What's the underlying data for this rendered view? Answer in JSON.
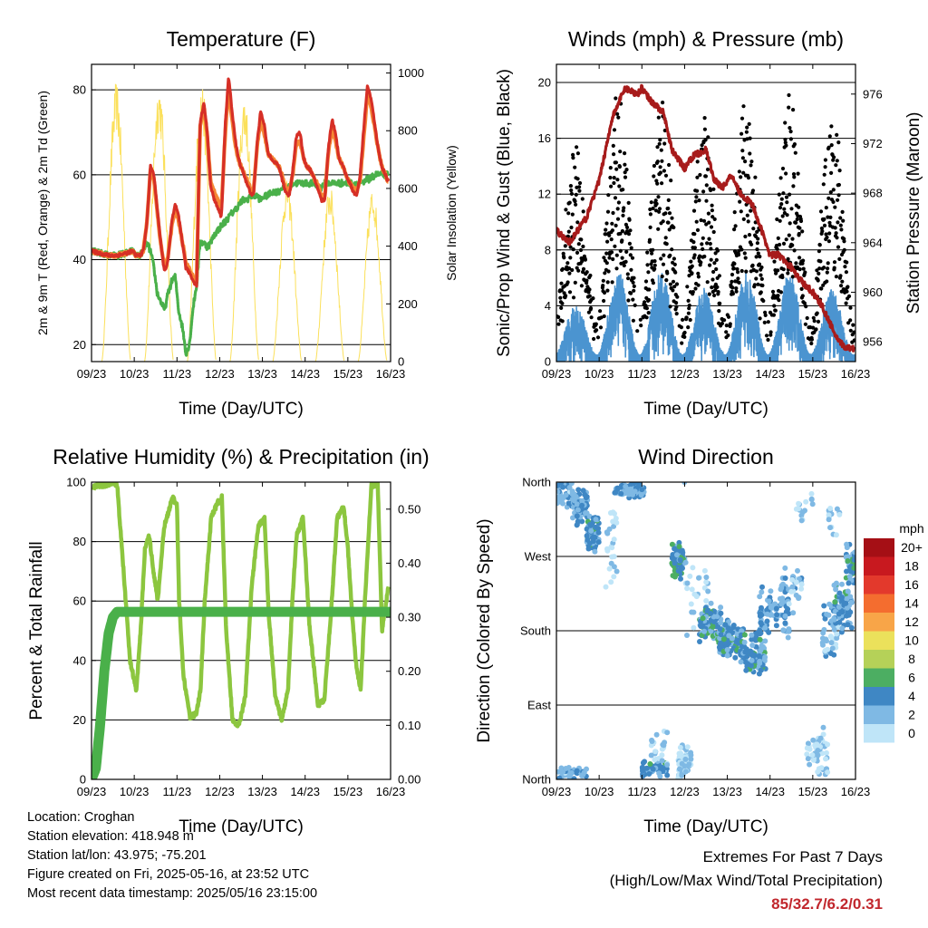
{
  "colors": {
    "temp_2m": "#d62f26",
    "temp_9m": "#f58735",
    "dewpoint": "#4ab04a",
    "solar": "#fbe05b",
    "wind_sonic": "#4b94d0",
    "wind_gust": "#000000",
    "pressure": "#a71b1b",
    "rh": "#8cc63f",
    "precip": "#4ab04a"
  },
  "chart_data": [
    {
      "type": "line",
      "title": "Temperature (F)",
      "xlabel": "Time (Day/UTC)",
      "ylabel": "2m & 9m T (Red, Orange) & 2m Td (Green)",
      "y2label": "Solar Insolation (Yellow)",
      "x_ticks": [
        "09/23",
        "10/23",
        "11/23",
        "12/23",
        "13/23",
        "14/23",
        "15/23",
        "16/23"
      ],
      "ylim": [
        16,
        86
      ],
      "y_ticks": [
        20,
        40,
        60,
        80
      ],
      "y2lim": [
        0,
        1030
      ],
      "y2_ticks": [
        0,
        200,
        400,
        600,
        800,
        1000
      ],
      "grid": true,
      "x": [
        9.96,
        10.04,
        10.13,
        10.21,
        10.29,
        10.38,
        10.46,
        10.54,
        10.63,
        10.71,
        10.79,
        10.88,
        10.96,
        11.04,
        11.13,
        11.21,
        11.29,
        11.38,
        11.46,
        11.54,
        11.63,
        11.71,
        11.79,
        11.88,
        11.96,
        12.04,
        12.13,
        12.21,
        12.29,
        12.38,
        12.46,
        12.54,
        12.63,
        12.71,
        12.79,
        12.88,
        12.96,
        13.04,
        13.13,
        13.21,
        13.29,
        13.38,
        13.46,
        13.54,
        13.63,
        13.71,
        13.79,
        13.88,
        13.96,
        14.04,
        14.13,
        14.21,
        14.29,
        14.38,
        14.46,
        14.54,
        14.63,
        14.71,
        14.79,
        14.88,
        14.96,
        15.04,
        15.13,
        15.21,
        15.29,
        15.38,
        15.46,
        15.54,
        15.63,
        15.71,
        15.79,
        15.88,
        15.96
      ],
      "series": [
        {
          "name": "2m T",
          "y": [
            42,
            41,
            41,
            42,
            48,
            62,
            60,
            52,
            43,
            37,
            40,
            49,
            53,
            50,
            44,
            38,
            37,
            35,
            34,
            72,
            77,
            70,
            57,
            54,
            52,
            50,
            72,
            83,
            75,
            67,
            63,
            61,
            58,
            56,
            55,
            68,
            75,
            72,
            65,
            64,
            63,
            62,
            59,
            56,
            55,
            61,
            69,
            70,
            64,
            62,
            61,
            59,
            57,
            54,
            54,
            66,
            73,
            70,
            64,
            62,
            60,
            58,
            56,
            55,
            60,
            72,
            81,
            78,
            72,
            66,
            62,
            60,
            58
          ]
        },
        {
          "name": "9m T",
          "y": [
            42,
            41,
            41,
            42,
            48,
            61,
            59,
            51,
            43,
            38,
            41,
            48,
            52,
            49,
            44,
            39,
            38,
            36,
            35,
            71,
            76,
            69,
            58,
            56,
            54,
            52,
            70,
            81,
            73,
            66,
            63,
            61,
            59,
            57,
            56,
            67,
            73,
            70,
            65,
            64,
            63,
            62,
            60,
            57,
            56,
            60,
            67,
            68,
            64,
            62,
            61,
            59,
            58,
            55,
            55,
            65,
            71,
            68,
            64,
            62,
            60,
            58,
            57,
            56,
            59,
            70,
            79,
            76,
            71,
            66,
            62,
            60,
            58
          ]
        },
        {
          "name": "2m Td",
          "y": [
            42,
            41,
            41,
            42,
            44,
            42,
            38,
            32,
            30,
            28,
            32,
            35,
            36,
            28,
            24,
            18,
            20,
            29,
            34,
            44,
            44,
            43,
            44,
            46,
            47,
            48,
            49,
            50,
            51,
            52,
            53,
            54,
            54,
            55,
            55,
            55,
            54,
            55,
            55,
            56,
            56,
            56,
            57,
            57,
            57,
            58,
            58,
            58,
            58,
            58,
            58,
            58,
            57,
            57,
            58,
            58,
            58,
            58,
            58,
            58,
            58,
            58,
            58,
            58,
            58,
            58,
            59,
            59,
            60,
            60,
            60,
            60,
            60
          ]
        },
        {
          "name": "Solar",
          "y2_peaks": [
            970,
            970,
            970,
            930,
            630,
            610,
            600,
            700,
            990
          ]
        }
      ]
    },
    {
      "type": "scatter",
      "title": "Winds (mph) & Pressure (mb)",
      "xlabel": "Time (Day/UTC)",
      "ylabel": "Sonic/Prop Wind & Gust (Blue, Black)",
      "y2label": "Station Pressure (Maroon)",
      "x_ticks": [
        "09/23",
        "10/23",
        "11/23",
        "12/23",
        "13/23",
        "14/23",
        "15/23",
        "16/23"
      ],
      "ylim": [
        0,
        21.3
      ],
      "y_ticks": [
        0,
        4,
        8,
        12,
        16,
        20
      ],
      "y2lim": [
        954.4,
        978.4
      ],
      "y2_ticks": [
        956,
        960,
        964,
        968,
        972,
        976
      ],
      "grid": true,
      "pressure_x": [
        9.0,
        9.3,
        9.5,
        9.7,
        10.0,
        10.3,
        10.6,
        10.9,
        11.0,
        11.2,
        11.5,
        11.7,
        11.8,
        12.0,
        12.2,
        12.5,
        12.7,
        12.9,
        13.1,
        13.3,
        13.6,
        13.8,
        14.0,
        14.2,
        14.5,
        14.7,
        15.0,
        15.2,
        15.4,
        15.6,
        15.8,
        15.95
      ],
      "pressure_y": [
        965,
        964,
        965,
        966,
        969,
        974,
        976.5,
        976,
        976.5,
        975.5,
        974.5,
        971.5,
        971,
        970,
        971,
        971.5,
        969,
        968.5,
        969.5,
        968,
        967,
        965,
        963,
        963,
        962,
        961,
        960,
        959,
        957.5,
        956,
        955.5,
        955.5
      ],
      "sonic_daily_peaks": [
        3,
        5,
        5,
        4,
        5,
        5,
        4,
        4
      ],
      "gust_daily_peaks": [
        13,
        17,
        16,
        15,
        17,
        17,
        16,
        19
      ]
    },
    {
      "type": "line",
      "title": "Relative Humidity (%) & Precipitation (in)",
      "xlabel": "Time (Day/UTC)",
      "ylabel": "Percent & Total Rainfall",
      "x_ticks": [
        "09/23",
        "10/23",
        "11/23",
        "12/23",
        "13/23",
        "14/23",
        "15/23",
        "16/23"
      ],
      "ylim": [
        0,
        100
      ],
      "y_ticks": [
        0,
        20,
        40,
        60,
        80,
        100
      ],
      "y2lim": [
        0,
        0.55
      ],
      "y2_ticks": [
        "0.00",
        "0.10",
        "0.20",
        "0.30",
        "0.40",
        "0.50"
      ],
      "grid": true,
      "rh_x": [
        9.05,
        9.1,
        9.3,
        9.5,
        9.6,
        9.75,
        9.9,
        10.05,
        10.15,
        10.25,
        10.35,
        10.45,
        10.55,
        10.7,
        10.9,
        11.0,
        11.05,
        11.15,
        11.3,
        11.45,
        11.55,
        11.65,
        11.8,
        11.95,
        12.05,
        12.15,
        12.3,
        12.45,
        12.6,
        12.75,
        12.9,
        13.05,
        13.15,
        13.3,
        13.45,
        13.6,
        13.7,
        13.8,
        13.95,
        14.1,
        14.3,
        14.45,
        14.6,
        14.75,
        14.9,
        15.0,
        15.1,
        15.2,
        15.3,
        15.4,
        15.55,
        15.7,
        15.8,
        15.95
      ],
      "rh_y": [
        98,
        99,
        99,
        100,
        99,
        70,
        40,
        30,
        50,
        78,
        82,
        70,
        60,
        85,
        95,
        92,
        60,
        35,
        21,
        22,
        30,
        60,
        88,
        93,
        95,
        50,
        20,
        18,
        28,
        65,
        85,
        88,
        55,
        28,
        20,
        30,
        60,
        82,
        88,
        52,
        25,
        27,
        55,
        88,
        92,
        78,
        55,
        38,
        30,
        60,
        99,
        99,
        50,
        65
      ],
      "precip_x": [
        9.0,
        9.1,
        9.2,
        9.3,
        9.4,
        9.5,
        9.6,
        9.7,
        15.95
      ],
      "precip_y": [
        0.0,
        0.02,
        0.1,
        0.2,
        0.27,
        0.3,
        0.31,
        0.31,
        0.31
      ]
    },
    {
      "type": "scatter",
      "title": "Wind Direction",
      "xlabel": "Time (Day/UTC)",
      "ylabel": "Direction (Colored By Speed)",
      "x_ticks": [
        "09/23",
        "10/23",
        "11/23",
        "12/23",
        "13/23",
        "14/23",
        "15/23",
        "16/23"
      ],
      "y_ticks": [
        "North",
        "East",
        "South",
        "West",
        "North"
      ],
      "ylim": [
        0,
        360
      ],
      "grid": true,
      "colorbar_title": "mph",
      "colorbar_labels": [
        "20+",
        "18",
        "16",
        "14",
        "12",
        "10",
        "8",
        "6",
        "4",
        "2",
        "0"
      ],
      "colorbar_colors": [
        "#a50f15",
        "#c8191f",
        "#e3392c",
        "#f46d2f",
        "#f8a548",
        "#ebe15b",
        "#b5d158",
        "#4cae62",
        "#3f87c4",
        "#7fb9e4",
        "#bfe5f8"
      ]
    }
  ],
  "info": {
    "location": "Location: Croghan",
    "elevation": "Station elevation: 418.948 m",
    "latlon": "Station lat/lon: 43.975; -75.201",
    "created": "Figure created on Fri, 2025-05-16, at 23:52 UTC",
    "timestamp": "Most recent data timestamp: 2025/05/16 23:15:00"
  },
  "extremes": {
    "title": "Extremes For Past 7 Days",
    "subtitle": "(High/Low/Max Wind/Total Precipitation)",
    "values": "85/32.7/6.2/0.31"
  }
}
